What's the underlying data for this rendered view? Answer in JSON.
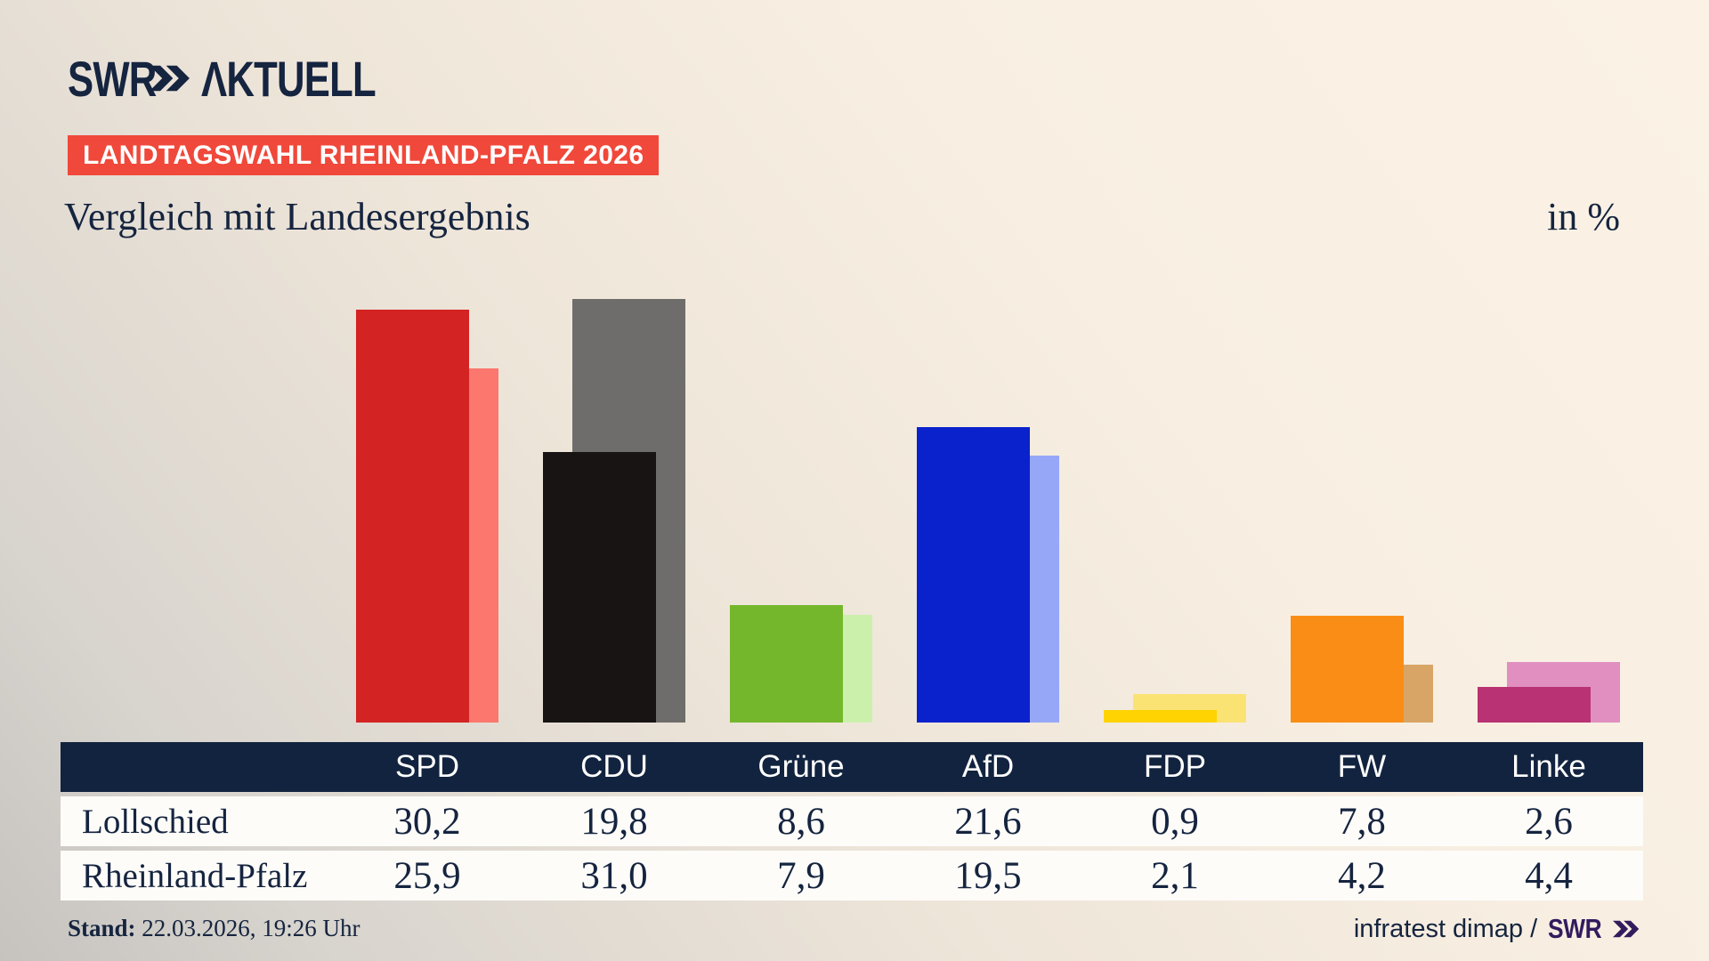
{
  "brand": {
    "swr": "SWR",
    "aktuell": "ΛKTUELL",
    "chevrons_icon": "swr-double-chevron"
  },
  "badge": {
    "text": "LANDTAGSWAHL RHEINLAND-PFALZ 2026"
  },
  "title": "Vergleich mit Landesergebnis",
  "unit_label": "in %",
  "chart_data": {
    "type": "bar",
    "categories": [
      "SPD",
      "CDU",
      "Grüne",
      "AfD",
      "FDP",
      "FW",
      "Linke"
    ],
    "series": [
      {
        "name": "Lollschied",
        "values": [
          30.2,
          19.8,
          8.6,
          21.6,
          0.9,
          7.8,
          2.6
        ]
      },
      {
        "name": "Rheinland-Pfalz",
        "values": [
          25.9,
          31.0,
          7.9,
          19.5,
          2.1,
          4.2,
          4.4
        ]
      }
    ],
    "colors_dark": [
      "#d32322",
      "#171413",
      "#75b72c",
      "#0a22cc",
      "#fed301",
      "#fa8d15",
      "#b93273"
    ],
    "colors_light": [
      "#fc776d",
      "#6f6d6b",
      "#cbf0ac",
      "#97a7f8",
      "#fbe373",
      "#d8a567",
      "#e08fc0"
    ],
    "title": "Vergleich mit Landesergebnis",
    "xlabel": "",
    "ylabel": "in %",
    "unit": "%",
    "ylim": [
      0,
      33
    ],
    "grid": false,
    "legend_position": "table-below",
    "note": "dark bar in front = Lollschied, light tint bar behind = Rheinland-Pfalz"
  },
  "table": {
    "header": [
      "",
      "SPD",
      "CDU",
      "Grüne",
      "AfD",
      "FDP",
      "FW",
      "Linke"
    ],
    "rows": [
      {
        "label": "Lollschied",
        "values": [
          "30,2",
          "19,8",
          "8,6",
          "21,6",
          "0,9",
          "7,8",
          "2,6"
        ]
      },
      {
        "label": "Rheinland-Pfalz",
        "values": [
          "25,9",
          "31,0",
          "7,9",
          "19,5",
          "2,1",
          "4,2",
          "4,4"
        ]
      }
    ]
  },
  "footer": {
    "stand_label": "Stand:",
    "stand_value": "22.03.2026, 19:26 Uhr",
    "source_text": "infratest dimap /",
    "source_logo": "SWR"
  },
  "colors": {
    "navy": "#15243f",
    "badge_red": "#f0483a",
    "table_header_bg": "#12233f",
    "row_bg": "#fdfcf9",
    "swr_purple": "#321c5e",
    "background_cream": "#f8efe2",
    "background_gray": "#c6c3bf"
  }
}
